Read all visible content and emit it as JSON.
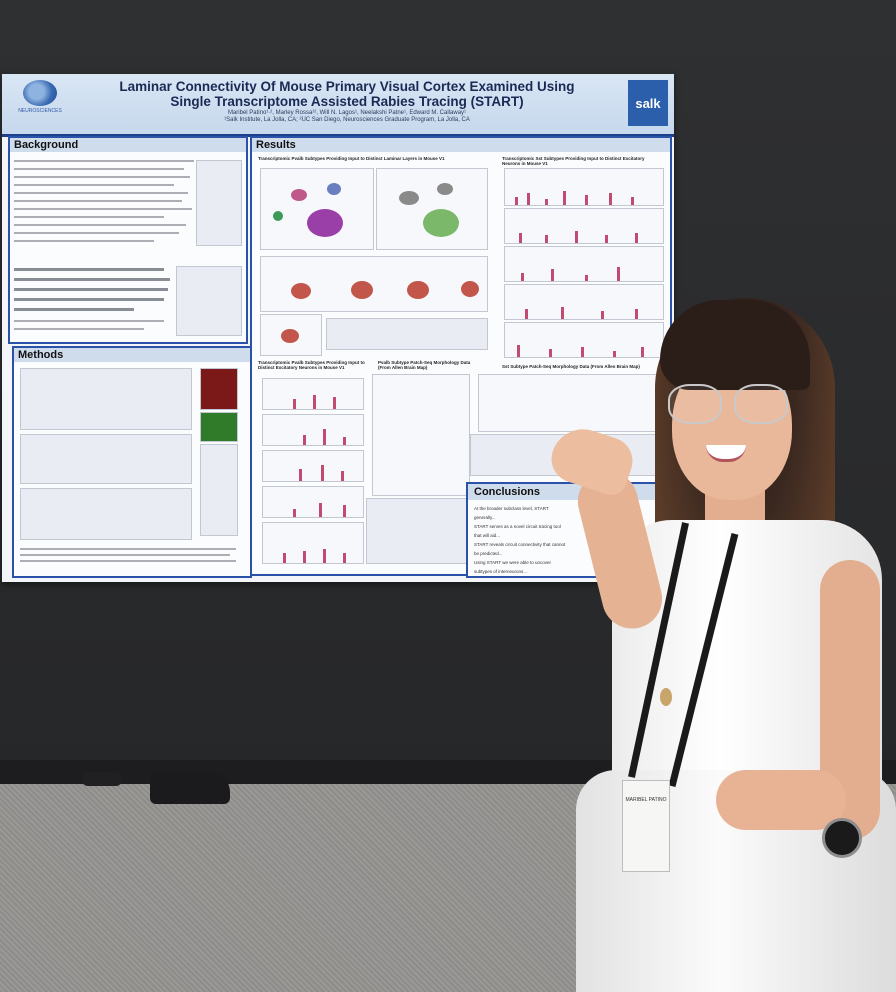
{
  "poster": {
    "title_line1": "Laminar Connectivity Of Mouse Primary Visual Cortex Examined Using",
    "title_line2": "Single Transcriptome Assisted Rabies Tracing (START)",
    "authors": "Maribel Patino¹·², Marley Rossa¹², Will N. Lagos¹, Neelakshi Patne¹, Edward M. Callaway¹",
    "affiliations": "¹Salk Institute, La Jolla, CA; ²UC San Diego, Neurosciences Graduate Program, La Jolla, CA",
    "logo_left_text": "NEUROSCIENCES",
    "logo_right_text": "salk",
    "sections": {
      "background": "Background",
      "methods": "Methods",
      "results": "Results",
      "conclusions": "Conclusions"
    },
    "results_subheads": {
      "left": "Transcriptomic Pvalb Subtypes Providing Input to Distinct Laminar Layers in Mouse V1",
      "right": "Transcriptomic Sst Subtypes Providing Input to Distinct Excitatory Neurons in Mouse V1",
      "mid_left": "Transcriptomic Pvalb Subtypes Providing Input to Distinct Excitatory Neurons in Mouse V1",
      "mid_center": "Pvalb Subtype Patch-Seq Morphology Data (From Allen Brain Map)",
      "mid_right": "Sst Subtype Patch-Seq Morphology Data (From Allen Brain Map)"
    },
    "conclusion_bullets": [
      "At the broader subclass level, START generally...",
      "START serves as a novel circuit tracing tool that will aid...",
      "START reveals circuit connectivity that cannot be predicted...",
      "Using START we were able to uncover subtypes of interneurons..."
    ]
  },
  "badge_text": "MARIBEL PATINO",
  "colors": {
    "poster_border": "#2a52a8",
    "header_bg": "#c6d8ec",
    "bar_color": "#c14c72",
    "board": "#2b2b2d"
  }
}
